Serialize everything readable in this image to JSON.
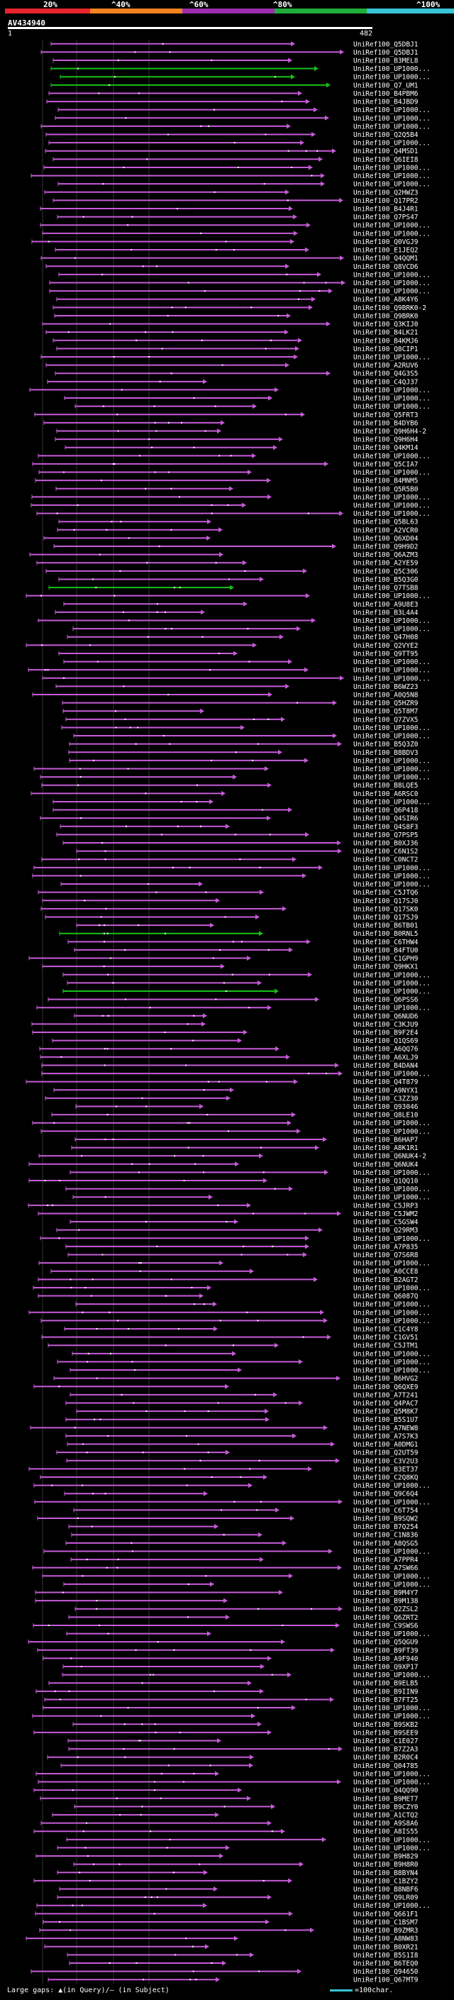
{
  "scale": {
    "ticks": [
      "20%",
      "^40%",
      "^60%",
      "^80%",
      "^100%"
    ],
    "segment_colors": [
      "#e8242e",
      "#f58220",
      "#9b2fae",
      "#1fae3a",
      "#39c5d6"
    ]
  },
  "query": {
    "name": "AV434940",
    "start": "1",
    "end": "482"
  },
  "colors": {
    "hit": "#c65bd8",
    "hit_alt": "#18c018",
    "gap_marker": "#ffffff",
    "grid": "#333333"
  },
  "hits": [
    "UniRef100_Q5DBJ1",
    "UniRef100_Q5DBJ1",
    "UniRef100_B3MEL8",
    "UniRef100_UP1000...",
    "UniRef100_UP1000...",
    "UniRef100_Q7_UM1",
    "UniRef100_B4PBM6",
    "UniRef100_B4JBD9",
    "UniRef100_UP1000...",
    "UniRef100_UP1000...",
    "UniRef100_UP1000...",
    "UniRef100_Q2Q5B4",
    "UniRef100_UP1000...",
    "UniRef100_Q4MSD1",
    "UniRef100_Q6IEI8",
    "UniRef100_UP1000...",
    "UniRef100_UP1000...",
    "UniRef100_UP1000...",
    "UniRef100_Q2HWZ3",
    "UniRef100_Q17PR2",
    "UniRef100_B4J4R1",
    "UniRef100_Q7PS47",
    "UniRef100_UP1000...",
    "UniRef100_UP1000...",
    "UniRef100_Q0VGJ9",
    "UniRef100_E1JEQ2",
    "UniRef100_Q4QQM1",
    "UniRef100_Q8VCD6",
    "UniRef100_UP1000...",
    "UniRef100_UP1000...",
    "UniRef100_UP1000...",
    "UniRef100_A8K4Y6",
    "UniRef100_Q9BRK0-2",
    "UniRef100_Q9BRK0",
    "UniRef100_Q3KIJ0",
    "UniRef100_B4LK21",
    "UniRef100_B4KMJ6",
    "UniRef100_Q8CIP1",
    "UniRef100_UP1000...",
    "UniRef100_A2RUV6",
    "UniRef100_Q4G3S5",
    "UniRef100_C4QJ37",
    "UniRef100_UP1000...",
    "UniRef100_UP1000...",
    "UniRef100_UP1000...",
    "UniRef100_Q5FRT3",
    "UniRef100_B4DYB6",
    "UniRef100_Q9H6H4-2",
    "UniRef100_Q9H6H4",
    "UniRef100_Q4KM14",
    "UniRef100_UP1000...",
    "UniRef100_Q5CIA7",
    "UniRef100_UP1000...",
    "UniRef100_B4MNM5",
    "UniRef100_Q5R5B0",
    "UniRef100_UP1000...",
    "UniRef100_UP1000...",
    "UniRef100_UP1000...",
    "UniRef100_Q5BL63",
    "UniRef100_A2VCR0",
    "UniRef100_Q6XD04",
    "UniRef100_Q9H9D2",
    "UniRef100_Q6AZM3",
    "UniRef100_A2YE59",
    "UniRef100_Q5C306",
    "UniRef100_B5Q3G0",
    "UniRef100_Q7TSB8",
    "UniRef100_UP1000...",
    "UniRef100_A9U8E3",
    "UniRef100_B3L4A4",
    "UniRef100_UP1000...",
    "UniRef100_UP1000...",
    "UniRef100_Q47H08",
    "UniRef100_Q2VYE2",
    "UniRef100_Q9TT95",
    "UniRef100_UP1000...",
    "UniRef100_UP1000...",
    "UniRef100_UP1000...",
    "UniRef100_B6WZ23",
    "UniRef100_A0Q5N8",
    "UniRef100_Q5HZR9",
    "UniRef100_Q5T8M7",
    "UniRef100_Q7ZVX5",
    "UniRef100_UP1000...",
    "UniRef100_UP1000...",
    "UniRef100_B5Q3Z0",
    "UniRef100_B8BDV3",
    "UniRef100_UP1000...",
    "UniRef100_UP1000...",
    "UniRef100_UP1000...",
    "UniRef100_B8LQE5",
    "UniRef100_A6RSC0",
    "UniRef100_UP1000...",
    "UniRef100_Q6P418",
    "UniRef100_Q4SIR6",
    "UniRef100_Q4S8F3",
    "UniRef100_Q7PSP5",
    "UniRef100_B0XJ36",
    "UniRef100_C6N1S2",
    "UniRef100_C0NCT2",
    "UniRef100_UP1000...",
    "UniRef100_UP1000...",
    "UniRef100_UP1000...",
    "UniRef100_C5JTQ6",
    "UniRef100_Q17SJ0",
    "UniRef100_Q17SK0",
    "UniRef100_Q17SJ9",
    "UniRef100_B6TB01",
    "UniRef100_B0RNL5",
    "UniRef100_C6THW4",
    "UniRef100_B4FTU0",
    "UniRef100_C1GPH9",
    "UniRef100_Q9HKX1",
    "UniRef100_UP1000...",
    "UniRef100_UP1000...",
    "UniRef100_UP1000...",
    "UniRef100_Q6PSS6",
    "UniRef100_UP1000...",
    "UniRef100_Q6NUD6",
    "UniRef100_C3KJU9",
    "UniRef100_B9F2E4",
    "UniRef100_Q1QS69",
    "UniRef100_A6QQ76",
    "UniRef100_A6XLJ9",
    "UniRef100_B4DAN4",
    "UniRef100_UP1000...",
    "UniRef100_Q4T879",
    "UniRef100_A9NYX1",
    "UniRef100_C3ZZ30",
    "UniRef100_Q93046",
    "UniRef100_Q8LE10",
    "UniRef100_UP1000...",
    "UniRef100_UP1000...",
    "UniRef100_B6HAP7",
    "UniRef100_A8K1R1",
    "UniRef100_Q6NUK4-2",
    "UniRef100_Q6NUK4",
    "UniRef100_UP1000...",
    "UniRef100_Q1QQ10",
    "UniRef100_UP1000...",
    "UniRef100_UP1000...",
    "UniRef100_C5JRP3",
    "UniRef100_C5JWM2",
    "UniRef100_C5GSW4",
    "UniRef100_Q29RM3",
    "UniRef100_UP1000...",
    "UniRef100_A7P835",
    "UniRef100_Q7S6R8",
    "UniRef100_UP1000...",
    "UniRef100_A0CCE8",
    "UniRef100_B2AGT2",
    "UniRef100_UP1000...",
    "UniRef100_Q6087Q",
    "UniRef100_UP1000...",
    "UniRef100_UP1000...",
    "UniRef100_UP1000...",
    "UniRef100_C1C4Y8",
    "UniRef100_C1GV51",
    "UniRef100_C5JTM1",
    "UniRef100_UP1000...",
    "UniRef100_UP1000...",
    "UniRef100_UP1000...",
    "UniRef100_B6HVG2",
    "UniRef100_Q6QXE9",
    "UniRef100_A7T241",
    "UniRef100_Q4PAC7",
    "UniRef100_Q5M8K7",
    "UniRef100_B5S1U7",
    "UniRef100_A7NEW8",
    "UniRef100_A7S7K3",
    "UniRef100_A0DMG1",
    "UniRef100_Q2UT59",
    "UniRef100_C3V2U3",
    "UniRef100_B3ET37",
    "UniRef100_C2Q8KQ",
    "UniRef100_UP1000...",
    "UniRef100_Q9C6Q4",
    "UniRef100_UP1000...",
    "UniRef100_C6T754",
    "UniRef100_B9SQW2",
    "UniRef100_B7Q254",
    "UniRef100_C1N836",
    "UniRef100_A8QSG5",
    "UniRef100_UP1000...",
    "UniRef100_A7PPR4",
    "UniRef100_A7SW66",
    "UniRef100_UP1000...",
    "UniRef100_UP1000...",
    "UniRef100_B9M4Y7",
    "UniRef100_B9M138",
    "UniRef100_Q2ZSL2",
    "UniRef100_Q6ZRT2",
    "UniRef100_C9SWS6",
    "UniRef100_UP1000...",
    "UniRef100_Q5QGU9",
    "UniRef100_B9FT39",
    "UniRef100_A9F940",
    "UniRef100_Q9XP17",
    "UniRef100_UP1000...",
    "UniRef100_B9ELB5",
    "UniRef100_B9IIN9",
    "UniRef100_B7FT25",
    "UniRef100_UP1000...",
    "UniRef100_UP1000...",
    "UniRef100_B9SKB2",
    "UniRef100_B9SEE9",
    "UniRef100_C1E027",
    "UniRef100_B7Z2A3",
    "UniRef100_B2R0C4",
    "UniRef100_Q04785",
    "UniRef100_UP1000...",
    "UniRef100_UP1000...",
    "UniRef100_Q4QQ90",
    "UniRef100_B9MET7",
    "UniRef100_B9CZY0",
    "UniRef100_A1CTQ2",
    "UniRef100_A9S8A6",
    "UniRef100_A8IS55",
    "UniRef100_UP1000...",
    "UniRef100_UP1000...",
    "UniRef100_B9H829",
    "UniRef100_B9H8R0",
    "UniRef100_B8BYN4",
    "UniRef100_C1BZY2",
    "UniRef100_B8NBF6",
    "UniRef100_Q9LR09",
    "UniRef100_UP1000...",
    "UniRef100_Q661F1",
    "UniRef100_C1BSM7",
    "UniRef100_B9ZMR3",
    "UniRef100_A8NW83",
    "UniRef100_B0XR21",
    "UniRef100_B5S1I8",
    "UniRef100_B6TEQ0",
    "UniRef100_Q94650",
    "UniRef100_Q67MT9"
  ],
  "footer": {
    "text": "Large gaps: ▲(in Query)/– (in Subject)",
    "legend": "=100char."
  }
}
